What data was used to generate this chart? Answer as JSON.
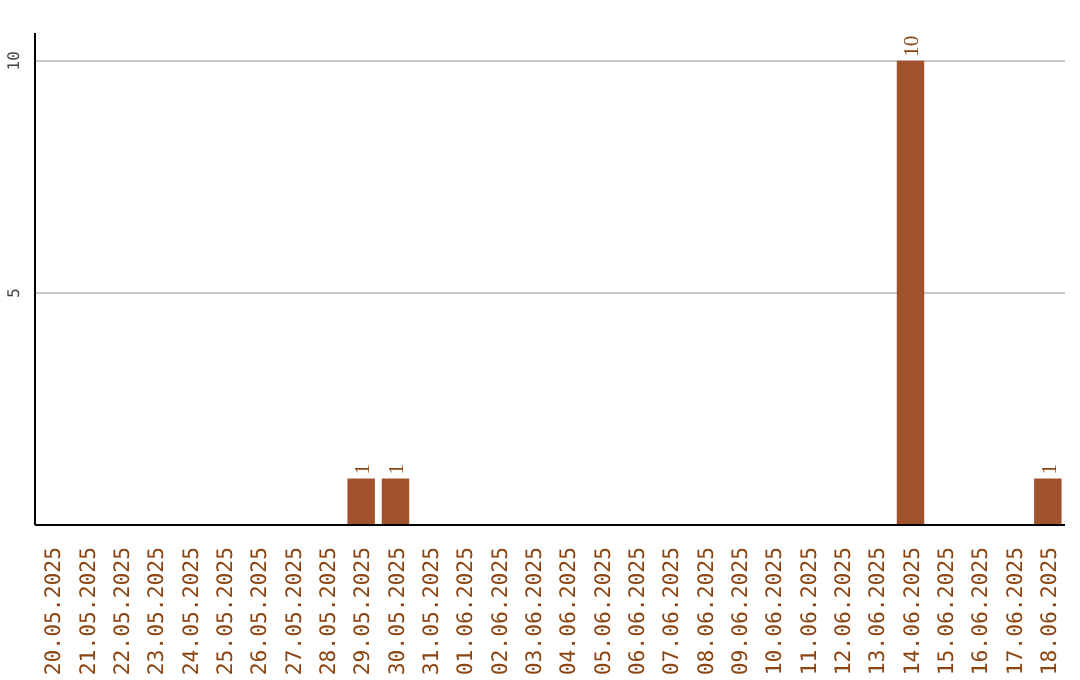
{
  "chart_data": {
    "type": "bar",
    "categories": [
      "20.05.2025",
      "21.05.2025",
      "22.05.2025",
      "23.05.2025",
      "24.05.2025",
      "25.05.2025",
      "26.05.2025",
      "27.05.2025",
      "28.05.2025",
      "29.05.2025",
      "30.05.2025",
      "31.05.2025",
      "01.06.2025",
      "02.06.2025",
      "03.06.2025",
      "04.06.2025",
      "05.06.2025",
      "06.06.2025",
      "07.06.2025",
      "08.06.2025",
      "09.06.2025",
      "10.06.2025",
      "11.06.2025",
      "12.06.2025",
      "13.06.2025",
      "14.06.2025",
      "15.06.2025",
      "16.06.2025",
      "17.06.2025",
      "18.06.2025"
    ],
    "values": [
      0,
      0,
      0,
      0,
      0,
      0,
      0,
      0,
      0,
      1,
      1,
      0,
      0,
      0,
      0,
      0,
      0,
      0,
      0,
      0,
      0,
      0,
      0,
      0,
      0,
      10,
      0,
      0,
      0,
      1
    ],
    "value_labels": [
      null,
      null,
      null,
      null,
      null,
      null,
      null,
      null,
      null,
      "1",
      "1",
      null,
      null,
      null,
      null,
      null,
      null,
      null,
      null,
      null,
      null,
      null,
      null,
      null,
      null,
      "10",
      null,
      null,
      null,
      "1"
    ],
    "color": "#a0522d",
    "ylim": [
      0,
      10.6
    ],
    "yticks": [
      5,
      10
    ],
    "grid": "y"
  }
}
